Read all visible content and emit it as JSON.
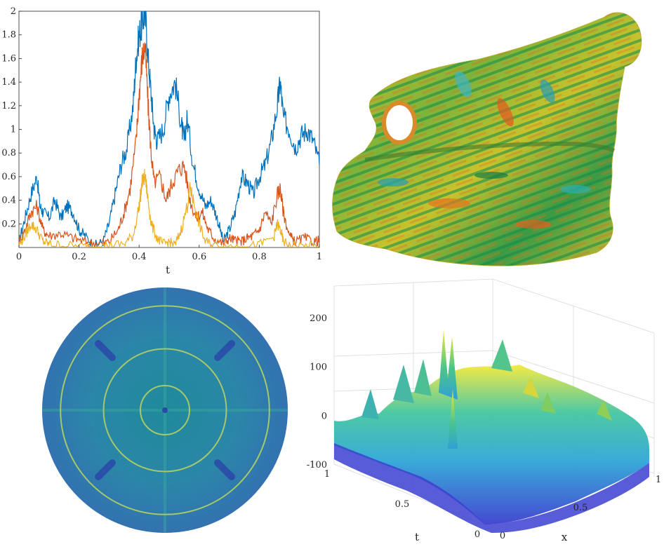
{
  "chart_data": [
    {
      "panel": "top-left",
      "type": "line",
      "xlabel": "t",
      "ylabel": "",
      "xlim": [
        0,
        1
      ],
      "ylim": [
        0,
        2
      ],
      "x_ticks": [
        "0",
        "0.2",
        "0.4",
        "0.6",
        "0.8",
        "1"
      ],
      "y_ticks": [
        "0.2",
        "0.4",
        "0.6",
        "0.8",
        "1",
        "1.2",
        "1.4",
        "1.6",
        "1.8",
        "2"
      ],
      "grid": false,
      "series": [
        {
          "color": "#0072BD",
          "x": [
            0,
            0.02,
            0.04,
            0.06,
            0.07,
            0.08,
            0.1,
            0.12,
            0.14,
            0.16,
            0.18,
            0.2,
            0.22,
            0.25,
            0.28,
            0.3,
            0.32,
            0.34,
            0.36,
            0.38,
            0.39,
            0.4,
            0.41,
            0.42,
            0.43,
            0.44,
            0.45,
            0.46,
            0.48,
            0.5,
            0.52,
            0.54,
            0.55,
            0.56,
            0.58,
            0.6,
            0.62,
            0.64,
            0.66,
            0.68,
            0.7,
            0.72,
            0.74,
            0.76,
            0.78,
            0.8,
            0.82,
            0.84,
            0.86,
            0.87,
            0.88,
            0.9,
            0.92,
            0.94,
            0.96,
            0.98,
            1
          ],
          "y": [
            0.05,
            0.25,
            0.45,
            0.6,
            0.35,
            0.3,
            0.25,
            0.4,
            0.25,
            0.35,
            0.3,
            0.15,
            0.1,
            0.02,
            0.05,
            0.2,
            0.45,
            0.7,
            0.85,
            1.2,
            1.6,
            1.8,
            1.9,
            2.0,
            1.6,
            1.3,
            1.0,
            0.9,
            1.0,
            1.3,
            1.4,
            1.05,
            0.9,
            1.1,
            0.7,
            0.5,
            0.35,
            0.4,
            0.25,
            0.05,
            0.15,
            0.3,
            0.6,
            0.55,
            0.45,
            0.6,
            0.7,
            0.9,
            1.2,
            1.4,
            1.1,
            1.0,
            0.85,
            0.95,
            1.0,
            0.9,
            0.7
          ]
        },
        {
          "color": "#D95319",
          "x": [
            0,
            0.02,
            0.04,
            0.06,
            0.08,
            0.1,
            0.14,
            0.18,
            0.22,
            0.26,
            0.3,
            0.33,
            0.35,
            0.37,
            0.39,
            0.4,
            0.41,
            0.42,
            0.43,
            0.44,
            0.45,
            0.47,
            0.49,
            0.51,
            0.53,
            0.55,
            0.57,
            0.59,
            0.61,
            0.63,
            0.65,
            0.68,
            0.7,
            0.72,
            0.74,
            0.76,
            0.78,
            0.8,
            0.82,
            0.84,
            0.86,
            0.87,
            0.88,
            0.9,
            0.92,
            0.95,
            0.98,
            1
          ],
          "y": [
            0.05,
            0.15,
            0.3,
            0.35,
            0.15,
            0.1,
            0.12,
            0.08,
            0.05,
            0.03,
            0.05,
            0.15,
            0.3,
            0.5,
            0.9,
            1.3,
            1.6,
            1.7,
            1.2,
            0.8,
            0.55,
            0.6,
            0.4,
            0.55,
            0.65,
            0.7,
            0.4,
            0.25,
            0.3,
            0.15,
            0.08,
            0.03,
            0.08,
            0.06,
            0.05,
            0.08,
            0.1,
            0.15,
            0.3,
            0.2,
            0.45,
            0.5,
            0.3,
            0.1,
            0.05,
            0.08,
            0.05,
            0.06
          ]
        },
        {
          "color": "#EDB120",
          "x": [
            0,
            0.02,
            0.04,
            0.06,
            0.08,
            0.1,
            0.14,
            0.2,
            0.25,
            0.3,
            0.35,
            0.38,
            0.4,
            0.41,
            0.42,
            0.43,
            0.44,
            0.46,
            0.48,
            0.5,
            0.52,
            0.54,
            0.56,
            0.57,
            0.58,
            0.6,
            0.62,
            0.65,
            0.7,
            0.75,
            0.8,
            0.85,
            0.86,
            0.87,
            0.88,
            0.9,
            0.95,
            1
          ],
          "y": [
            0.02,
            0.1,
            0.2,
            0.15,
            0.05,
            0.03,
            0.02,
            0.01,
            0.01,
            0.02,
            0.03,
            0.1,
            0.35,
            0.55,
            0.6,
            0.4,
            0.2,
            0.08,
            0.03,
            0.05,
            0.02,
            0.15,
            0.35,
            0.5,
            0.4,
            0.2,
            0.05,
            0.02,
            0.01,
            0.01,
            0.02,
            0.1,
            0.2,
            0.15,
            0.05,
            0.02,
            0.01,
            0.01
          ]
        }
      ]
    },
    {
      "panel": "top-right",
      "type": "other",
      "description_free": true
    },
    {
      "panel": "bottom-left",
      "type": "heatmap",
      "rings": [
        0.2,
        0.5,
        0.85
      ]
    },
    {
      "panel": "bottom-right",
      "type": "surface",
      "xlabel": "x",
      "ylabel": "t",
      "zlim": [
        -100,
        250
      ],
      "z_ticks": [
        "-100",
        "0",
        "100",
        "200"
      ],
      "x_ticks": [
        "0",
        "0.5",
        "1"
      ],
      "t_ticks": [
        "0",
        "0.5",
        "1"
      ]
    }
  ],
  "colors": {
    "line1": "#0072BD",
    "line2": "#D95319",
    "line3": "#EDB120",
    "disk_base": "#2f7fb0",
    "disk_ring": "#a4c86a",
    "surface_low": "#3b3fcf",
    "surface_mid": "#2fa7d6",
    "surface_high": "#f4e93a"
  }
}
